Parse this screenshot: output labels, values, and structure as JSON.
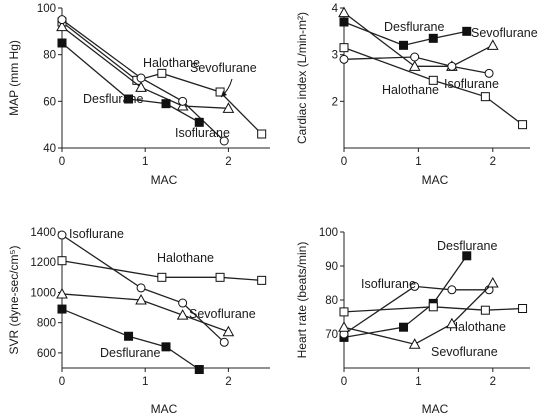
{
  "chart_data": [
    {
      "type": "line",
      "xlabel": "MAC",
      "ylabel": "MAP (mm Hg)",
      "xlim": [
        0,
        2.5
      ],
      "ylim": [
        40,
        100
      ],
      "xticks": [
        0,
        1,
        2
      ],
      "yticks": [
        40,
        60,
        80,
        100
      ],
      "series": [
        {
          "name": "Halothane",
          "marker": "square-open",
          "x": [
            0,
            0.9,
            1.2,
            1.9,
            2.4
          ],
          "y": [
            94,
            69,
            72,
            64,
            46
          ]
        },
        {
          "name": "Sevoflurane",
          "marker": "triangle-open",
          "x": [
            0,
            0.95,
            1.45,
            2.0
          ],
          "y": [
            92,
            66,
            58,
            57
          ]
        },
        {
          "name": "Isoflurane",
          "marker": "circle-open",
          "x": [
            0,
            0.95,
            1.45,
            1.95
          ],
          "y": [
            95,
            70,
            60,
            43
          ]
        },
        {
          "name": "Desflurane",
          "marker": "square-filled",
          "x": [
            0,
            0.8,
            1.25,
            1.65
          ],
          "y": [
            85,
            61,
            59,
            51
          ]
        }
      ]
    },
    {
      "type": "line",
      "xlabel": "MAC",
      "ylabel": "Cardiac index (L/min-m²)",
      "xlim": [
        0,
        2.5
      ],
      "ylim": [
        1,
        4
      ],
      "xticks": [
        0,
        1,
        2
      ],
      "yticks": [
        2,
        3,
        4
      ],
      "series": [
        {
          "name": "Desflurane",
          "marker": "square-filled",
          "x": [
            0,
            0.8,
            1.2,
            1.65
          ],
          "y": [
            3.7,
            3.2,
            3.35,
            3.5
          ]
        },
        {
          "name": "Sevoflurane",
          "marker": "triangle-open",
          "x": [
            0,
            0.95,
            1.45,
            2.0
          ],
          "y": [
            3.9,
            2.75,
            2.75,
            3.2
          ]
        },
        {
          "name": "Isoflurane",
          "marker": "circle-open",
          "x": [
            0,
            0.95,
            1.45,
            1.95
          ],
          "y": [
            2.9,
            2.95,
            2.75,
            2.6
          ]
        },
        {
          "name": "Halothane",
          "marker": "square-open",
          "x": [
            0,
            1.2,
            1.9,
            2.4
          ],
          "y": [
            3.15,
            2.45,
            2.1,
            1.5
          ]
        }
      ]
    },
    {
      "type": "line",
      "xlabel": "MAC",
      "ylabel": "SVR (dyne-sec/cm⁵)",
      "xlim": [
        0,
        2.5
      ],
      "ylim": [
        500,
        1400
      ],
      "xticks": [
        0,
        1,
        2
      ],
      "yticks": [
        600,
        800,
        1000,
        1200,
        1400
      ],
      "series": [
        {
          "name": "Isoflurane",
          "marker": "circle-open",
          "x": [
            0,
            0.95,
            1.45,
            1.95
          ],
          "y": [
            1380,
            1030,
            930,
            670
          ]
        },
        {
          "name": "Halothane",
          "marker": "square-open",
          "x": [
            0,
            1.2,
            1.9,
            2.4
          ],
          "y": [
            1210,
            1100,
            1100,
            1080
          ]
        },
        {
          "name": "Sevoflurane",
          "marker": "triangle-open",
          "x": [
            0,
            0.95,
            1.45,
            2.0
          ],
          "y": [
            990,
            950,
            850,
            740
          ]
        },
        {
          "name": "Desflurane",
          "marker": "square-filled",
          "x": [
            0,
            0.8,
            1.25,
            1.65
          ],
          "y": [
            890,
            710,
            640,
            490
          ]
        }
      ]
    },
    {
      "type": "line",
      "xlabel": "MAC",
      "ylabel": "Heart rate (beats/min)",
      "xlim": [
        0,
        2.5
      ],
      "ylim": [
        60,
        100
      ],
      "xticks": [
        0,
        1,
        2
      ],
      "yticks": [
        70,
        80,
        90,
        100
      ],
      "series": [
        {
          "name": "Desflurane",
          "marker": "square-filled",
          "x": [
            0,
            0.8,
            1.2,
            1.65
          ],
          "y": [
            69,
            72,
            79,
            93
          ]
        },
        {
          "name": "Isoflurane",
          "marker": "circle-open",
          "x": [
            0,
            0.95,
            1.45,
            1.95
          ],
          "y": [
            70,
            84,
            83,
            83
          ]
        },
        {
          "name": "Halothane",
          "marker": "square-open",
          "x": [
            0,
            1.2,
            1.9,
            2.4
          ],
          "y": [
            76.5,
            78,
            77,
            77.5
          ]
        },
        {
          "name": "Sevoflurane",
          "marker": "triangle-open",
          "x": [
            0,
            0.95,
            1.45,
            2.0
          ],
          "y": [
            72,
            67,
            73,
            85
          ]
        }
      ]
    }
  ]
}
